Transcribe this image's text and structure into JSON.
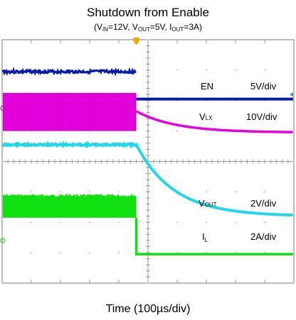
{
  "chart_data": {
    "type": "line",
    "title": "Shutdown from Enable",
    "subtitle": {
      "p1": "(V",
      "s1": "IN",
      "p2": "=12V, V",
      "s2": "OUT",
      "p3": "=5V, I",
      "s3": "OUT",
      "p4": "=3A)"
    },
    "xlabel": "Time (100µs/div)",
    "grid": true,
    "divisions": {
      "x": 10,
      "y": 8
    },
    "trigger_div": 4.6,
    "channels": [
      {
        "key": "en",
        "name": "EN",
        "scale": "5V/div",
        "color": "#0a1aa8"
      },
      {
        "key": "vlx",
        "name_main": "V",
        "name_sub": "LX",
        "scale": "10V/div",
        "color": "#e800e0"
      },
      {
        "key": "vout",
        "name_main": "V",
        "name_sub": "OUT",
        "scale": "2V/div",
        "color": "#20d8e8"
      },
      {
        "key": "il",
        "name_main": "I",
        "name_sub": "L",
        "scale": "2A/div",
        "color": "#10e010"
      }
    ]
  }
}
